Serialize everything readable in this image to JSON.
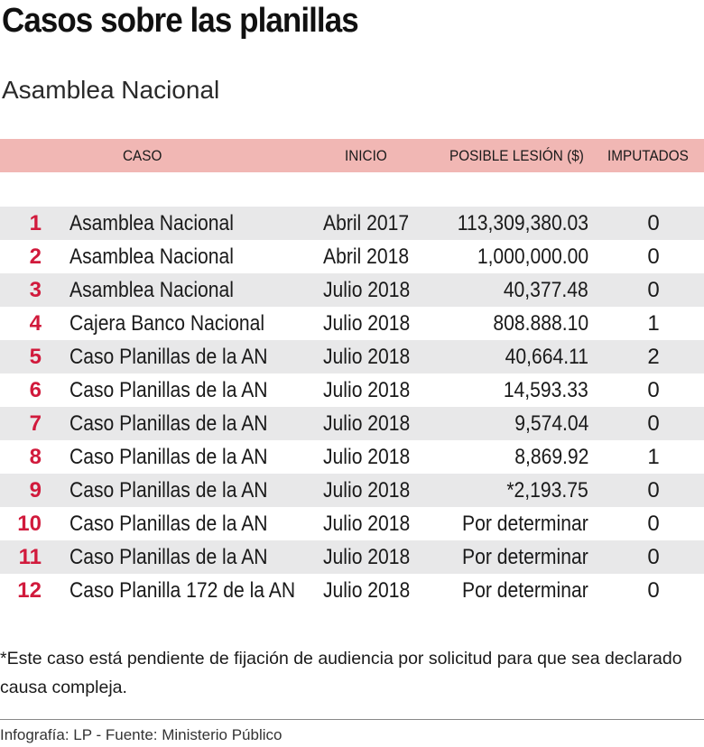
{
  "title": "Casos sobre las planillas",
  "subtitle": "Asamblea Nacional",
  "table": {
    "headers": {
      "caso": "CASO",
      "inicio": "INICIO",
      "lesion": "POSIBLE LESIÓN ($)",
      "imputados": "IMPUTADOS"
    },
    "rows": [
      {
        "num": "1",
        "caso": "Asamblea Nacional",
        "inicio": "Abril 2017",
        "lesion": "113,309,380.03",
        "imputados": "0"
      },
      {
        "num": "2",
        "caso": "Asamblea Nacional",
        "inicio": "Abril 2018",
        "lesion": "1,000,000.00",
        "imputados": "0"
      },
      {
        "num": "3",
        "caso": "Asamblea Nacional",
        "inicio": "Julio 2018",
        "lesion": "40,377.48",
        "imputados": "0"
      },
      {
        "num": "4",
        "caso": "Cajera Banco Nacional",
        "inicio": "Julio 2018",
        "lesion": "808.888.10",
        "imputados": "1"
      },
      {
        "num": "5",
        "caso": "Caso Planillas de la AN",
        "inicio": "Julio 2018",
        "lesion": "40,664.11",
        "imputados": "2"
      },
      {
        "num": "6",
        "caso": "Caso Planillas de la AN",
        "inicio": "Julio 2018",
        "lesion": "14,593.33",
        "imputados": "0"
      },
      {
        "num": "7",
        "caso": "Caso Planillas de la AN",
        "inicio": "Julio 2018",
        "lesion": "9,574.04",
        "imputados": "0"
      },
      {
        "num": "8",
        "caso": "Caso Planillas de la AN",
        "inicio": "Julio 2018",
        "lesion": "8,869.92",
        "imputados": "1"
      },
      {
        "num": "9",
        "caso": "Caso Planillas de la AN",
        "inicio": "Julio 2018",
        "lesion": "*2,193.75",
        "imputados": "0"
      },
      {
        "num": "10",
        "caso": "Caso Planillas de la AN",
        "inicio": "Julio 2018",
        "lesion": "Por determinar",
        "imputados": "0"
      },
      {
        "num": "11",
        "caso": "Caso Planillas de la AN",
        "inicio": "Julio 2018",
        "lesion": "Por determinar",
        "imputados": "0"
      },
      {
        "num": "12",
        "caso": "Caso Planilla 172 de la AN",
        "inicio": "Julio 2018",
        "lesion": "Por determinar",
        "imputados": "0"
      }
    ]
  },
  "note": "*Este caso está pendiente de fijación de audiencia por solicitud para que sea declarado causa compleja.",
  "source": "Infografía: LP - Fuente: Ministerio Público",
  "colors": {
    "header_band": "#f1b7b4",
    "row_stripe": "#e8e8e9",
    "case_number": "#d11a3c"
  }
}
